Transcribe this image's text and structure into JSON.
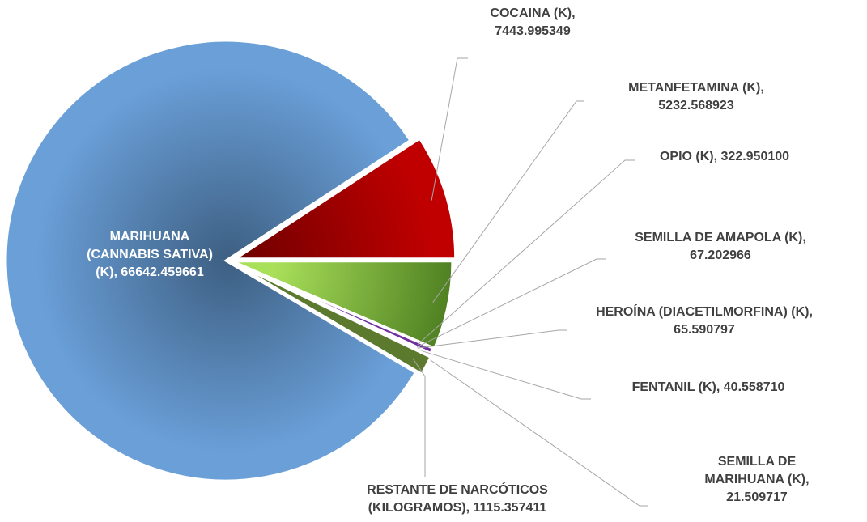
{
  "chart_data": {
    "type": "pie",
    "categories": [
      "COCAINA (K),",
      "METANFETAMINA (K),",
      "OPIO (K),",
      "SEMILLA DE AMAPOLA (K),",
      "HEROÍNA (DIACETILMORFINA) (K),",
      "FENTANIL (K),",
      "SEMILLA DE MARIHUANA (K),",
      "RESTANTE DE NARCÓTICOS (KILOGRAMOS),",
      "MARIHUANA (CANNABIS SATIVA) (K),"
    ],
    "values": [
      7443.995349,
      5232.568923,
      322.9501,
      67.202966,
      65.590797,
      40.55871,
      21.509717,
      1115.357411,
      66642.459661
    ],
    "value_labels": [
      "7443.995349",
      "5232.568923",
      "322.950100",
      "67.202966",
      "65.590797",
      "40.558710",
      "21.509717",
      "1115.357411",
      "66642.459661"
    ],
    "colors": [
      "#c00000",
      "#70ad47",
      "#7030a0",
      "#4472c4",
      "#a5a5a5",
      "#ed7d31",
      "#ffc000",
      "#5b7a2e",
      "#6a9fd8"
    ]
  }
}
